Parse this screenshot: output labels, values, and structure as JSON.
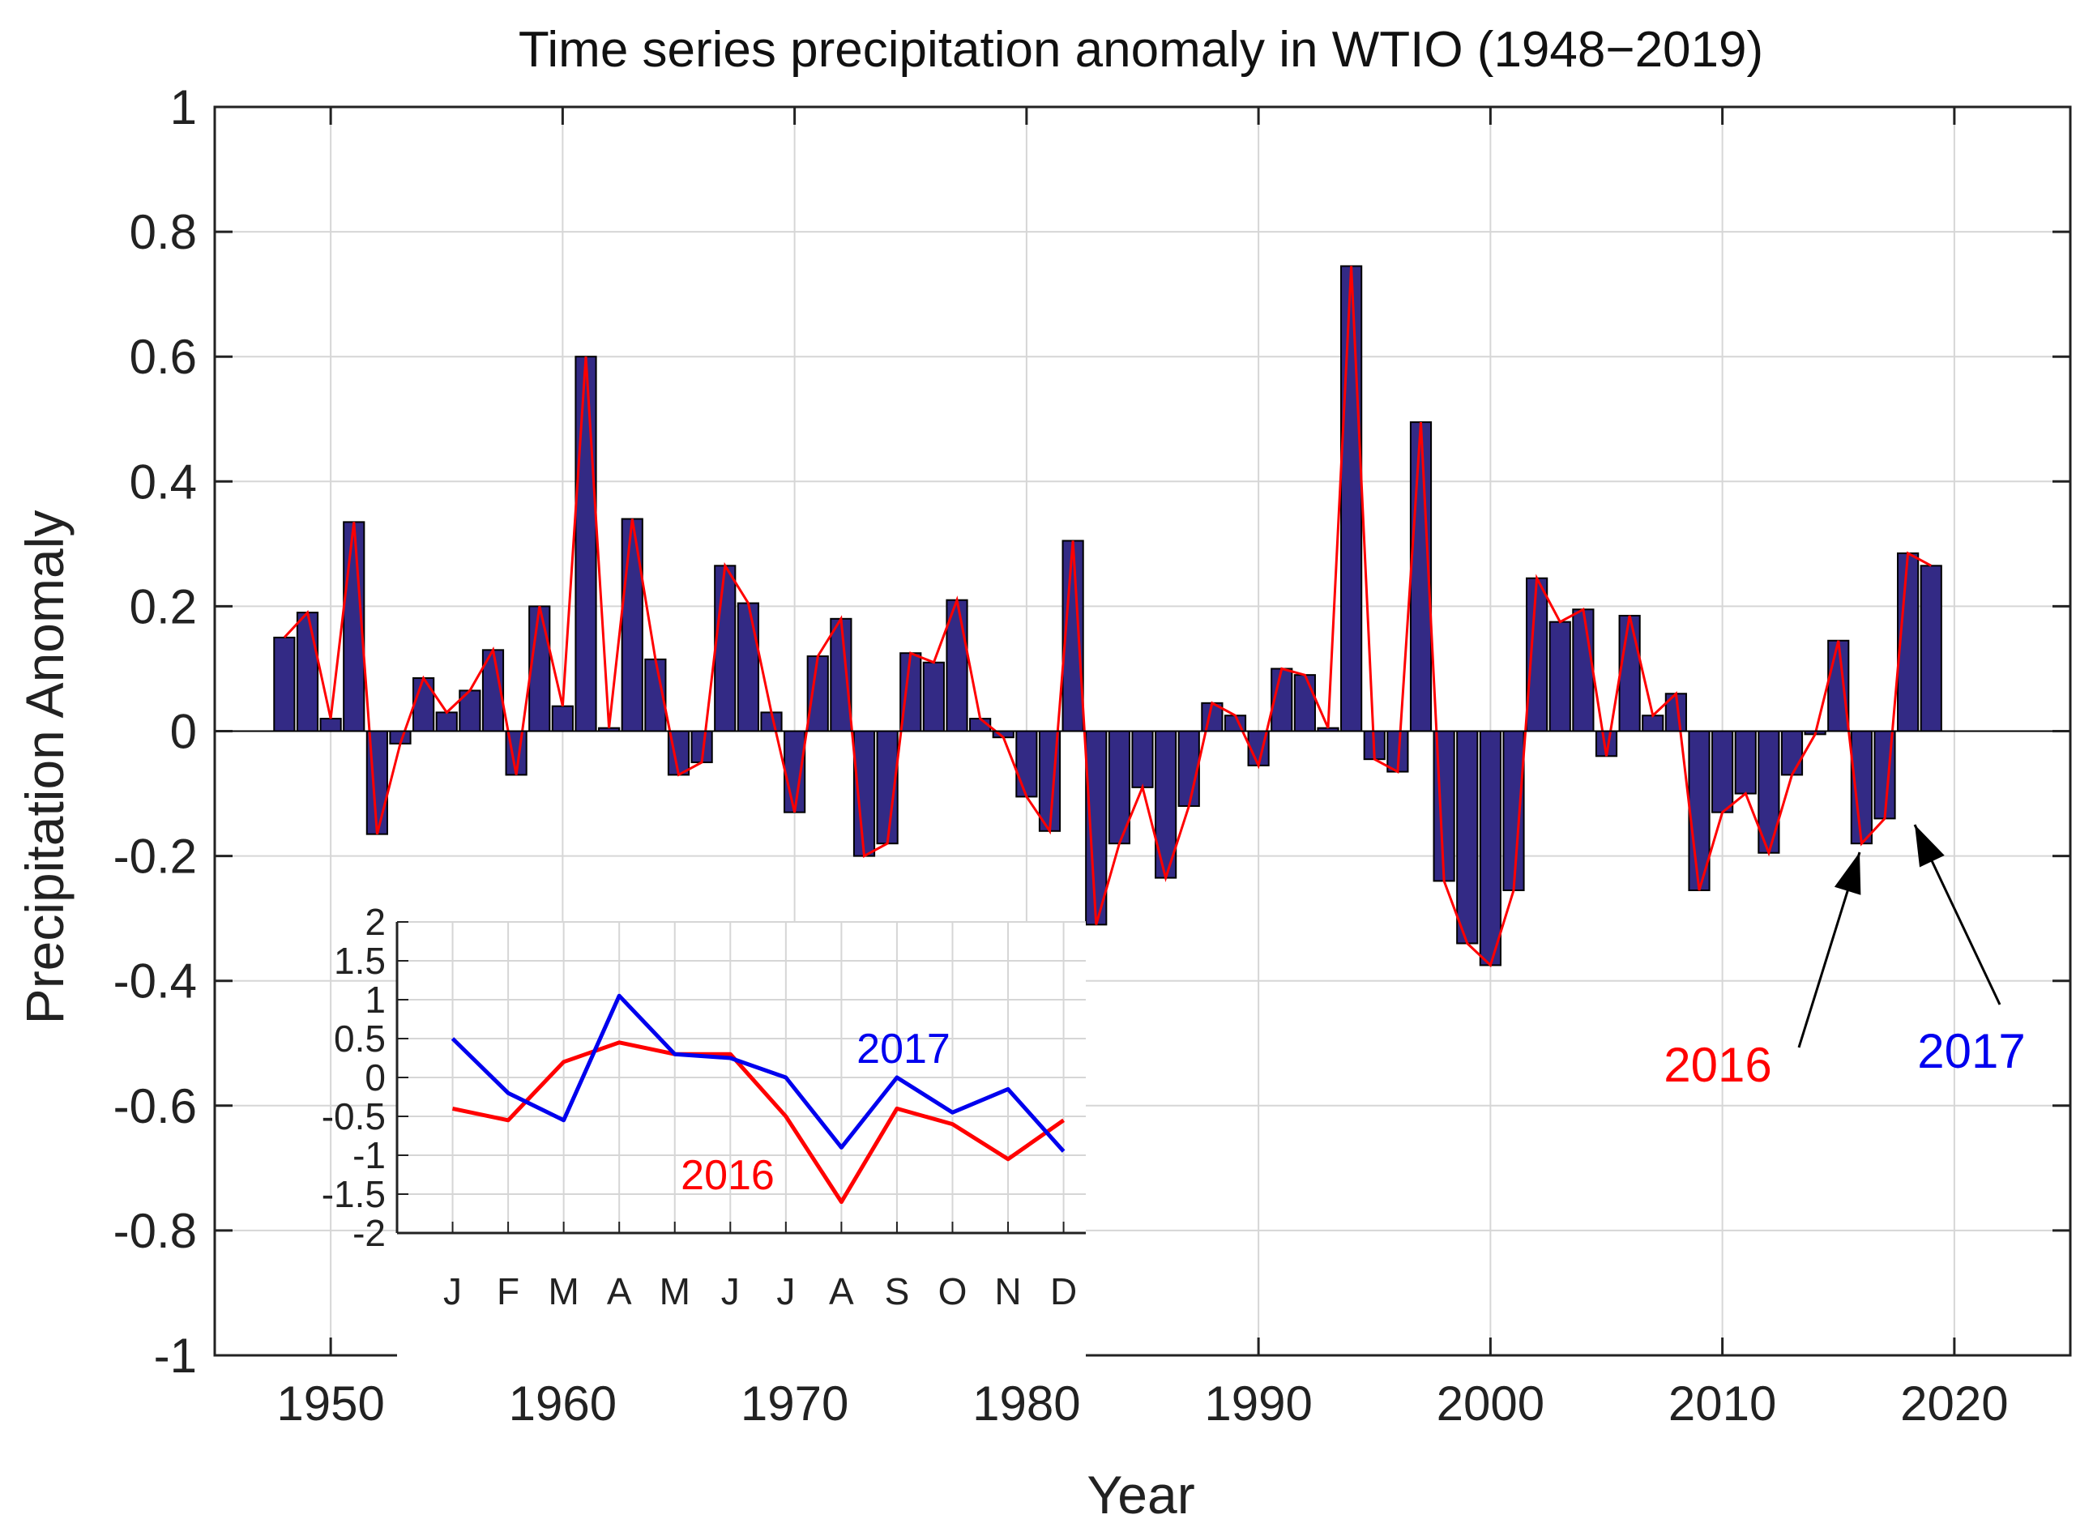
{
  "colors": {
    "bar": "#332a85",
    "line_red": "#ff0000",
    "line_blue": "#0000ee",
    "grid": "#d6d6d6",
    "axis": "#222222"
  },
  "chart_data": [
    {
      "type": "bar",
      "title": "Time series precipitation anomaly in WTIO (1948−2019)",
      "xlabel": "Year",
      "ylabel": "Precipitation Anomaly",
      "xlim": [
        1945,
        2025
      ],
      "ylim": [
        -1,
        1
      ],
      "xticks": [
        "1950",
        "1960",
        "1970",
        "1980",
        "1990",
        "2000",
        "2010",
        "2020"
      ],
      "yticks": [
        "1",
        "0.8",
        "0.6",
        "0.4",
        "0.2",
        "0",
        "-0.2",
        "-0.4",
        "-0.6",
        "-0.8",
        "-1"
      ],
      "grid": true,
      "x": [
        1948,
        1949,
        1950,
        1951,
        1952,
        1953,
        1954,
        1955,
        1956,
        1957,
        1958,
        1959,
        1960,
        1961,
        1962,
        1963,
        1964,
        1965,
        1966,
        1967,
        1968,
        1969,
        1970,
        1971,
        1972,
        1973,
        1974,
        1975,
        1976,
        1977,
        1978,
        1979,
        1980,
        1981,
        1982,
        1983,
        1984,
        1985,
        1986,
        1987,
        1988,
        1989,
        1990,
        1991,
        1992,
        1993,
        1994,
        1995,
        1996,
        1997,
        1998,
        1999,
        2000,
        2001,
        2002,
        2003,
        2004,
        2005,
        2006,
        2007,
        2008,
        2009,
        2010,
        2011,
        2012,
        2013,
        2014,
        2015,
        2016,
        2017,
        2018,
        2019
      ],
      "values": [
        0.15,
        0.19,
        0.02,
        0.335,
        -0.165,
        -0.02,
        0.085,
        0.03,
        0.065,
        0.13,
        -0.07,
        0.2,
        0.04,
        0.6,
        0.005,
        0.34,
        0.115,
        -0.07,
        -0.05,
        0.265,
        0.205,
        0.03,
        -0.13,
        0.12,
        0.18,
        -0.2,
        -0.18,
        0.125,
        0.11,
        0.21,
        0.02,
        -0.01,
        -0.105,
        -0.16,
        0.305,
        -0.31,
        -0.18,
        -0.09,
        -0.235,
        -0.12,
        0.045,
        0.025,
        -0.055,
        0.1,
        0.09,
        0.005,
        0.745,
        -0.045,
        -0.065,
        0.495,
        -0.24,
        -0.34,
        -0.375,
        -0.255,
        0.245,
        0.175,
        0.195,
        -0.04,
        0.185,
        0.025,
        0.06,
        -0.255,
        -0.13,
        -0.1,
        -0.195,
        -0.07,
        -0.005,
        0.145,
        -0.18,
        -0.14,
        0.285,
        0.265
      ],
      "overlay_line": "same values drawn as red line",
      "annotations": [
        {
          "text": "2016",
          "color": "red",
          "points_to": 2016
        },
        {
          "text": "2017",
          "color": "blue",
          "points_to": 2017
        }
      ]
    },
    {
      "type": "line",
      "title": "",
      "categories": [
        "J",
        "F",
        "M",
        "A",
        "M",
        "J",
        "J",
        "A",
        "S",
        "O",
        "N",
        "D"
      ],
      "ylim": [
        -2,
        2
      ],
      "yticks": [
        "2",
        "1.5",
        "1",
        "0.5",
        "0",
        "-0.5",
        "-1",
        "-1.5",
        "-2"
      ],
      "grid": true,
      "series": [
        {
          "name": "2016",
          "color": "red",
          "values": [
            -0.4,
            -0.55,
            0.2,
            0.45,
            0.3,
            0.3,
            -0.5,
            -1.6,
            -0.4,
            -0.6,
            -1.05,
            -0.55
          ]
        },
        {
          "name": "2017",
          "color": "blue",
          "values": [
            0.5,
            -0.2,
            -0.55,
            1.05,
            0.3,
            0.25,
            0.0,
            -0.9,
            0.0,
            -0.45,
            -0.15,
            -0.95
          ]
        }
      ]
    }
  ]
}
